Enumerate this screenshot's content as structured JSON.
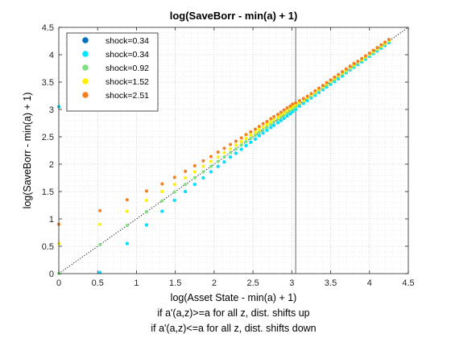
{
  "chart_data": {
    "type": "scatter",
    "title": "log(SaveBorr - min(a) + 1)",
    "xlabel": "log(Asset State - min(a) + 1)",
    "ylabel": "log(SaveBorr - min(a) + 1)",
    "xlim": [
      0,
      4.5
    ],
    "ylim": [
      0,
      4.5
    ],
    "xticks": [
      "0",
      "0.5",
      "1",
      "1.5",
      "2",
      "2.5",
      "3",
      "3.5",
      "4",
      "4.5"
    ],
    "yticks": [
      "0",
      "0.5",
      "1",
      "1.5",
      "2",
      "2.5",
      "3",
      "3.5",
      "4",
      "4.5"
    ],
    "grid": "dotted major and minor",
    "legend_position": "top-left",
    "reference_line": {
      "type": "45-degree",
      "style": "dotted black"
    },
    "vertical_line_x": 3.05,
    "notes": [
      "if a'(a,z)>=a for all z, dist. shifts up",
      "if a'(a,z)<=a for all z, dist. shifts down"
    ],
    "x": [
      0,
      0.53,
      0.88,
      1.13,
      1.33,
      1.49,
      1.63,
      1.75,
      1.86,
      1.96,
      2.05,
      2.13,
      2.21,
      2.28,
      2.35,
      2.41,
      2.47,
      2.53,
      2.58,
      2.63,
      2.68,
      2.73,
      2.77,
      2.82,
      2.86,
      2.9,
      2.94,
      2.98,
      3.01,
      3.05,
      3.1,
      3.15,
      3.2,
      3.25,
      3.3,
      3.35,
      3.4,
      3.45,
      3.5,
      3.55,
      3.6,
      3.65,
      3.7,
      3.75,
      3.8,
      3.85,
      3.9,
      3.95,
      4.0,
      4.05,
      4.1,
      4.15,
      4.2,
      4.25
    ],
    "series": [
      {
        "name": "shock=0.34",
        "color": "#0072BD",
        "y": [
          3.05,
          0.02,
          0.55,
          0.89,
          1.14,
          1.34,
          1.5,
          1.63,
          1.75,
          1.86,
          1.96,
          2.04,
          2.13,
          2.2,
          2.27,
          2.34,
          2.4,
          2.46,
          2.52,
          2.57,
          2.62,
          2.67,
          2.71,
          2.76,
          2.8,
          2.84,
          2.88,
          2.92,
          2.96,
          3.0,
          3.06,
          3.11,
          3.16,
          3.21,
          3.26,
          3.31,
          3.36,
          3.41,
          3.46,
          3.51,
          3.56,
          3.61,
          3.67,
          3.72,
          3.77,
          3.82,
          3.87,
          3.92,
          3.97,
          4.02,
          4.07,
          4.12,
          4.17,
          4.22
        ]
      },
      {
        "name": "shock=0.34",
        "color": "#00E5FF",
        "y": [
          3.05,
          0.02,
          0.55,
          0.89,
          1.14,
          1.34,
          1.5,
          1.63,
          1.75,
          1.86,
          1.96,
          2.04,
          2.13,
          2.2,
          2.27,
          2.34,
          2.4,
          2.46,
          2.52,
          2.57,
          2.62,
          2.67,
          2.71,
          2.76,
          2.8,
          2.84,
          2.88,
          2.92,
          2.96,
          3.0,
          3.06,
          3.11,
          3.16,
          3.21,
          3.26,
          3.31,
          3.36,
          3.41,
          3.46,
          3.51,
          3.56,
          3.61,
          3.67,
          3.72,
          3.77,
          3.82,
          3.87,
          3.92,
          3.97,
          4.02,
          4.07,
          4.12,
          4.17,
          4.22
        ]
      },
      {
        "name": "shock=0.92",
        "color": "#7FE07F",
        "y": [
          0.0,
          0.53,
          0.88,
          1.13,
          1.33,
          1.49,
          1.63,
          1.75,
          1.86,
          1.96,
          2.05,
          2.13,
          2.21,
          2.28,
          2.35,
          2.41,
          2.47,
          2.53,
          2.58,
          2.63,
          2.68,
          2.73,
          2.77,
          2.82,
          2.86,
          2.9,
          2.94,
          2.98,
          3.01,
          3.05,
          3.1,
          3.15,
          3.2,
          3.24,
          3.29,
          3.34,
          3.39,
          3.44,
          3.49,
          3.54,
          3.59,
          3.64,
          3.69,
          3.74,
          3.79,
          3.84,
          3.89,
          3.94,
          3.99,
          4.04,
          4.09,
          4.14,
          4.19,
          4.24
        ]
      },
      {
        "name": "shock=1.52",
        "color": "#FFF200",
        "y": [
          0.55,
          0.9,
          1.14,
          1.34,
          1.5,
          1.63,
          1.75,
          1.86,
          1.96,
          2.05,
          2.13,
          2.21,
          2.28,
          2.35,
          2.41,
          2.47,
          2.53,
          2.58,
          2.63,
          2.68,
          2.73,
          2.77,
          2.82,
          2.86,
          2.9,
          2.94,
          2.98,
          3.02,
          3.05,
          3.09,
          3.13,
          3.17,
          3.22,
          3.27,
          3.32,
          3.37,
          3.42,
          3.47,
          3.52,
          3.57,
          3.62,
          3.67,
          3.72,
          3.77,
          3.82,
          3.87,
          3.91,
          3.96,
          4.01,
          4.06,
          4.11,
          4.16,
          4.21,
          4.26
        ]
      },
      {
        "name": "shock=2.51",
        "color": "#F28022",
        "y": [
          0.9,
          1.15,
          1.35,
          1.51,
          1.64,
          1.76,
          1.87,
          1.97,
          2.06,
          2.14,
          2.22,
          2.29,
          2.36,
          2.42,
          2.48,
          2.54,
          2.59,
          2.64,
          2.69,
          2.74,
          2.78,
          2.83,
          2.87,
          2.91,
          2.95,
          2.99,
          3.03,
          3.06,
          3.1,
          3.12,
          3.16,
          3.2,
          3.24,
          3.29,
          3.34,
          3.39,
          3.44,
          3.49,
          3.54,
          3.59,
          3.64,
          3.69,
          3.74,
          3.79,
          3.84,
          3.88,
          3.93,
          3.98,
          4.03,
          4.08,
          4.13,
          4.18,
          4.23,
          4.28
        ]
      }
    ]
  }
}
